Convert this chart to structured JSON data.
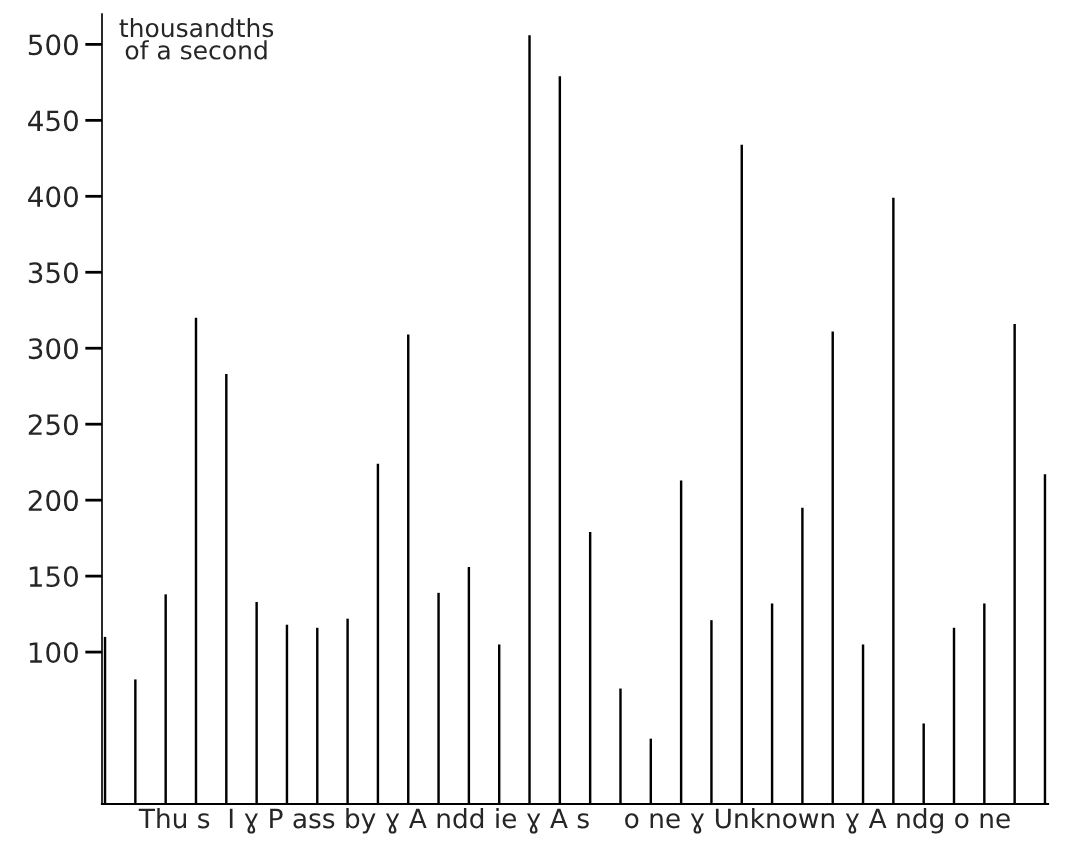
{
  "chart_data": {
    "type": "bar",
    "ylabel": "thousandths\nof a second",
    "xlabel": "Thu s  I ɣ P ass by ɣ A ndd ie ɣ A s    o ne ɣ Unknown ɣ A ndg o ne",
    "categories": [
      null,
      null,
      null,
      null,
      null,
      null,
      null,
      null,
      null,
      null,
      null,
      null,
      null,
      null,
      null,
      null,
      null,
      null,
      null,
      null,
      null,
      null,
      null,
      null,
      null,
      null,
      null,
      null,
      null,
      null,
      null,
      null
    ],
    "values": [
      110,
      82,
      138,
      320,
      283,
      133,
      118,
      116,
      122,
      224,
      309,
      139,
      156,
      105,
      506,
      479,
      179,
      76,
      43,
      213,
      121,
      434,
      132,
      195,
      311,
      105,
      399,
      53,
      116,
      132,
      316,
      217
    ],
    "color": "#000000",
    "ylim": [
      0,
      520
    ],
    "yticks": [
      100,
      150,
      200,
      250,
      300,
      350,
      400,
      450,
      500
    ],
    "grid": false,
    "legend": false
  }
}
